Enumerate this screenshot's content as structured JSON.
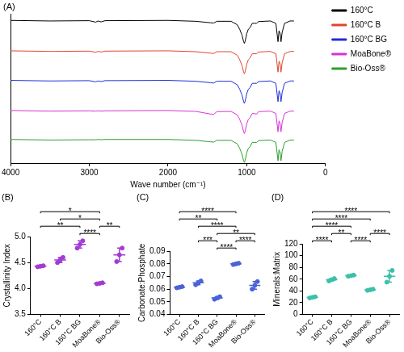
{
  "chart_data": [
    {
      "type": "line",
      "title": "(A)",
      "x_label": "Wave number (cm⁻¹)",
      "xlim": [
        4000,
        0
      ],
      "xticks": [
        4000,
        3000,
        2000,
        1000,
        0
      ],
      "ylim": [
        0,
        5.05
      ],
      "tick_labels": "x",
      "grid": false,
      "legend": "right",
      "x": [
        4000,
        3500,
        3000,
        2920,
        2890,
        2850,
        2800,
        2000,
        1650,
        1460,
        1420,
        1380,
        1200,
        1120,
        1090,
        1060,
        1040,
        1030,
        1020,
        1000,
        980,
        960,
        930,
        875,
        850,
        700,
        630,
        603,
        590,
        575,
        565,
        550,
        520,
        450,
        400
      ],
      "series": [
        {
          "name": "160°C",
          "color": "#000000",
          "values": [
            4.83,
            4.81,
            4.82,
            4.77,
            4.81,
            4.78,
            4.82,
            4.83,
            4.8,
            4.75,
            4.74,
            4.8,
            4.8,
            4.68,
            4.53,
            4.33,
            4.11,
            4.05,
            4.13,
            4.38,
            4.53,
            4.58,
            4.73,
            4.73,
            4.79,
            4.81,
            4.73,
            4.11,
            4.48,
            4.38,
            4.11,
            4.43,
            4.73,
            4.81,
            4.81
          ]
        },
        {
          "name": "160°C B",
          "color": "#e0442c",
          "values": [
            3.8,
            3.78,
            3.79,
            3.75,
            3.78,
            3.76,
            3.79,
            3.8,
            3.77,
            3.72,
            3.71,
            3.77,
            3.77,
            3.65,
            3.5,
            3.3,
            3.08,
            3.02,
            3.1,
            3.35,
            3.5,
            3.55,
            3.7,
            3.7,
            3.76,
            3.78,
            3.7,
            3.08,
            3.45,
            3.35,
            3.08,
            3.4,
            3.7,
            3.78,
            3.78
          ]
        },
        {
          "name": "160°C BG",
          "color": "#1f2fd6",
          "values": [
            2.8,
            2.78,
            2.79,
            2.75,
            2.78,
            2.76,
            2.79,
            2.8,
            2.77,
            2.72,
            2.71,
            2.77,
            2.77,
            2.65,
            2.5,
            2.3,
            2.08,
            2.02,
            2.1,
            2.35,
            2.5,
            2.55,
            2.7,
            2.7,
            2.76,
            2.78,
            2.7,
            2.08,
            2.45,
            2.35,
            2.08,
            2.4,
            2.7,
            2.78,
            2.78
          ]
        },
        {
          "name": "MoaBone®",
          "color": "#d633d6",
          "values": [
            1.78,
            1.76,
            1.77,
            1.76,
            1.77,
            1.76,
            1.77,
            1.78,
            1.75,
            1.66,
            1.65,
            1.74,
            1.75,
            1.63,
            1.48,
            1.28,
            1.06,
            1.0,
            1.08,
            1.33,
            1.48,
            1.53,
            1.68,
            1.66,
            1.74,
            1.76,
            1.68,
            1.06,
            1.43,
            1.33,
            1.06,
            1.38,
            1.68,
            1.76,
            1.76
          ]
        },
        {
          "name": "Bio-Oss®",
          "color": "#2e9e2e",
          "values": [
            0.8,
            0.78,
            0.79,
            0.79,
            0.8,
            0.79,
            0.8,
            0.8,
            0.77,
            0.72,
            0.71,
            0.77,
            0.77,
            0.65,
            0.5,
            0.3,
            0.08,
            0.02,
            0.1,
            0.35,
            0.5,
            0.55,
            0.7,
            0.7,
            0.76,
            0.78,
            0.7,
            0.08,
            0.45,
            0.35,
            0.08,
            0.4,
            0.7,
            0.78,
            0.78
          ]
        }
      ]
    },
    {
      "type": "scatter",
      "title": "(B)",
      "y_label": "Crystallinity Index",
      "categories": [
        "160°C",
        "160°C B",
        "160°C BG",
        "MoaBone®",
        "Bio-Oss®"
      ],
      "values": [
        [
          4.42,
          4.43,
          4.44
        ],
        [
          4.5,
          4.55,
          4.6
        ],
        [
          4.78,
          4.85,
          4.92
        ],
        [
          4.09,
          4.1,
          4.11
        ],
        [
          4.52,
          4.65,
          4.78
        ]
      ],
      "mean": [
        4.43,
        4.55,
        4.85,
        4.1,
        4.65
      ],
      "sd": [
        0.01,
        0.05,
        0.07,
        0.01,
        0.13
      ],
      "color": "#a23bd4",
      "ylim": [
        3.5,
        5
      ],
      "yticks": [
        3.5,
        {
          "value": 4,
          "label": "4.0"
        },
        4.5,
        {
          "value": 5,
          "label": "5.0"
        }
      ],
      "grid": false,
      "comparisons": [
        {
          "from": "160°C",
          "to": "MoaBone®",
          "label": "*"
        },
        {
          "from": "160°C",
          "to": "160°C BG",
          "label": "**"
        },
        {
          "from": "160°C B",
          "to": "MoaBone®",
          "label": "*"
        },
        {
          "from": "160°C BG",
          "to": "MoaBone®",
          "label": "****"
        },
        {
          "from": "MoaBone®",
          "to": "Bio-Oss®",
          "label": "**"
        }
      ]
    },
    {
      "type": "scatter",
      "title": "(C)",
      "y_label": "Carbonate:Phosphate",
      "categories": [
        "160°C",
        "160°C B",
        "160°C BG",
        "MoaBone®",
        "Bio-Oss®"
      ],
      "values": [
        [
          0.061,
          0.0615,
          0.062
        ],
        [
          0.0635,
          0.065,
          0.0665
        ],
        [
          0.052,
          0.053,
          0.054
        ],
        [
          0.0795,
          0.08,
          0.0805
        ],
        [
          0.06,
          0.063,
          0.066
        ]
      ],
      "mean": [
        0.0615,
        0.065,
        0.053,
        0.08,
        0.063
      ],
      "sd": [
        0.0005,
        0.0015,
        0.001,
        0.0005,
        0.003
      ],
      "color": "#4a63d8",
      "ylim": [
        0.04,
        0.09
      ],
      "yticks": [
        0.04,
        0.05,
        0.06,
        0.07,
        0.08,
        0.09
      ],
      "grid": false,
      "comparisons": [
        {
          "from": "160°C",
          "to": "MoaBone®",
          "label": "****"
        },
        {
          "from": "160°C BG",
          "to": "Bio-Oss®",
          "label": "**"
        },
        {
          "from": "160°C B",
          "to": "MoaBone®",
          "label": "****"
        },
        {
          "from": "160°C",
          "to": "160°C BG",
          "label": "**"
        },
        {
          "from": "160°C BG",
          "to": "MoaBone®",
          "label": "****"
        },
        {
          "from": "160°C B",
          "to": "160°C BG",
          "label": "***"
        },
        {
          "from": "MoaBone®",
          "to": "Bio-Oss®",
          "label": "****"
        }
      ]
    },
    {
      "type": "scatter",
      "title": "(D)",
      "y_label": "Minerals:Matrix",
      "categories": [
        "160°C",
        "160°C B",
        "160°C BG",
        "MoaBone®",
        "Bio-Oss®"
      ],
      "values": [
        [
          28,
          29,
          30
        ],
        [
          57,
          59,
          61
        ],
        [
          65,
          66,
          67
        ],
        [
          41,
          42,
          43
        ],
        [
          55,
          65,
          75
        ]
      ],
      "mean": [
        29,
        59,
        66,
        42,
        65
      ],
      "sd": [
        1,
        2,
        1,
        1,
        10
      ],
      "color": "#3cc0a8",
      "ylim": [
        0,
        120
      ],
      "yticks": [
        0,
        20,
        40,
        60,
        80,
        100,
        120
      ],
      "grid": false,
      "comparisons": [
        {
          "from": "160°C",
          "to": "Bio-Oss®",
          "label": "****"
        },
        {
          "from": "160°C",
          "to": "MoaBone®",
          "label": "****"
        },
        {
          "from": "160°C",
          "to": "160°C BG",
          "label": "****"
        },
        {
          "from": "160°C",
          "to": "160°C B",
          "label": "****"
        },
        {
          "from": "160°C B",
          "to": "160°C BG",
          "label": "**"
        },
        {
          "from": "160°C BG",
          "to": "MoaBone®",
          "label": "****"
        },
        {
          "from": "MoaBone®",
          "to": "Bio-Oss®",
          "label": "****"
        }
      ]
    }
  ]
}
